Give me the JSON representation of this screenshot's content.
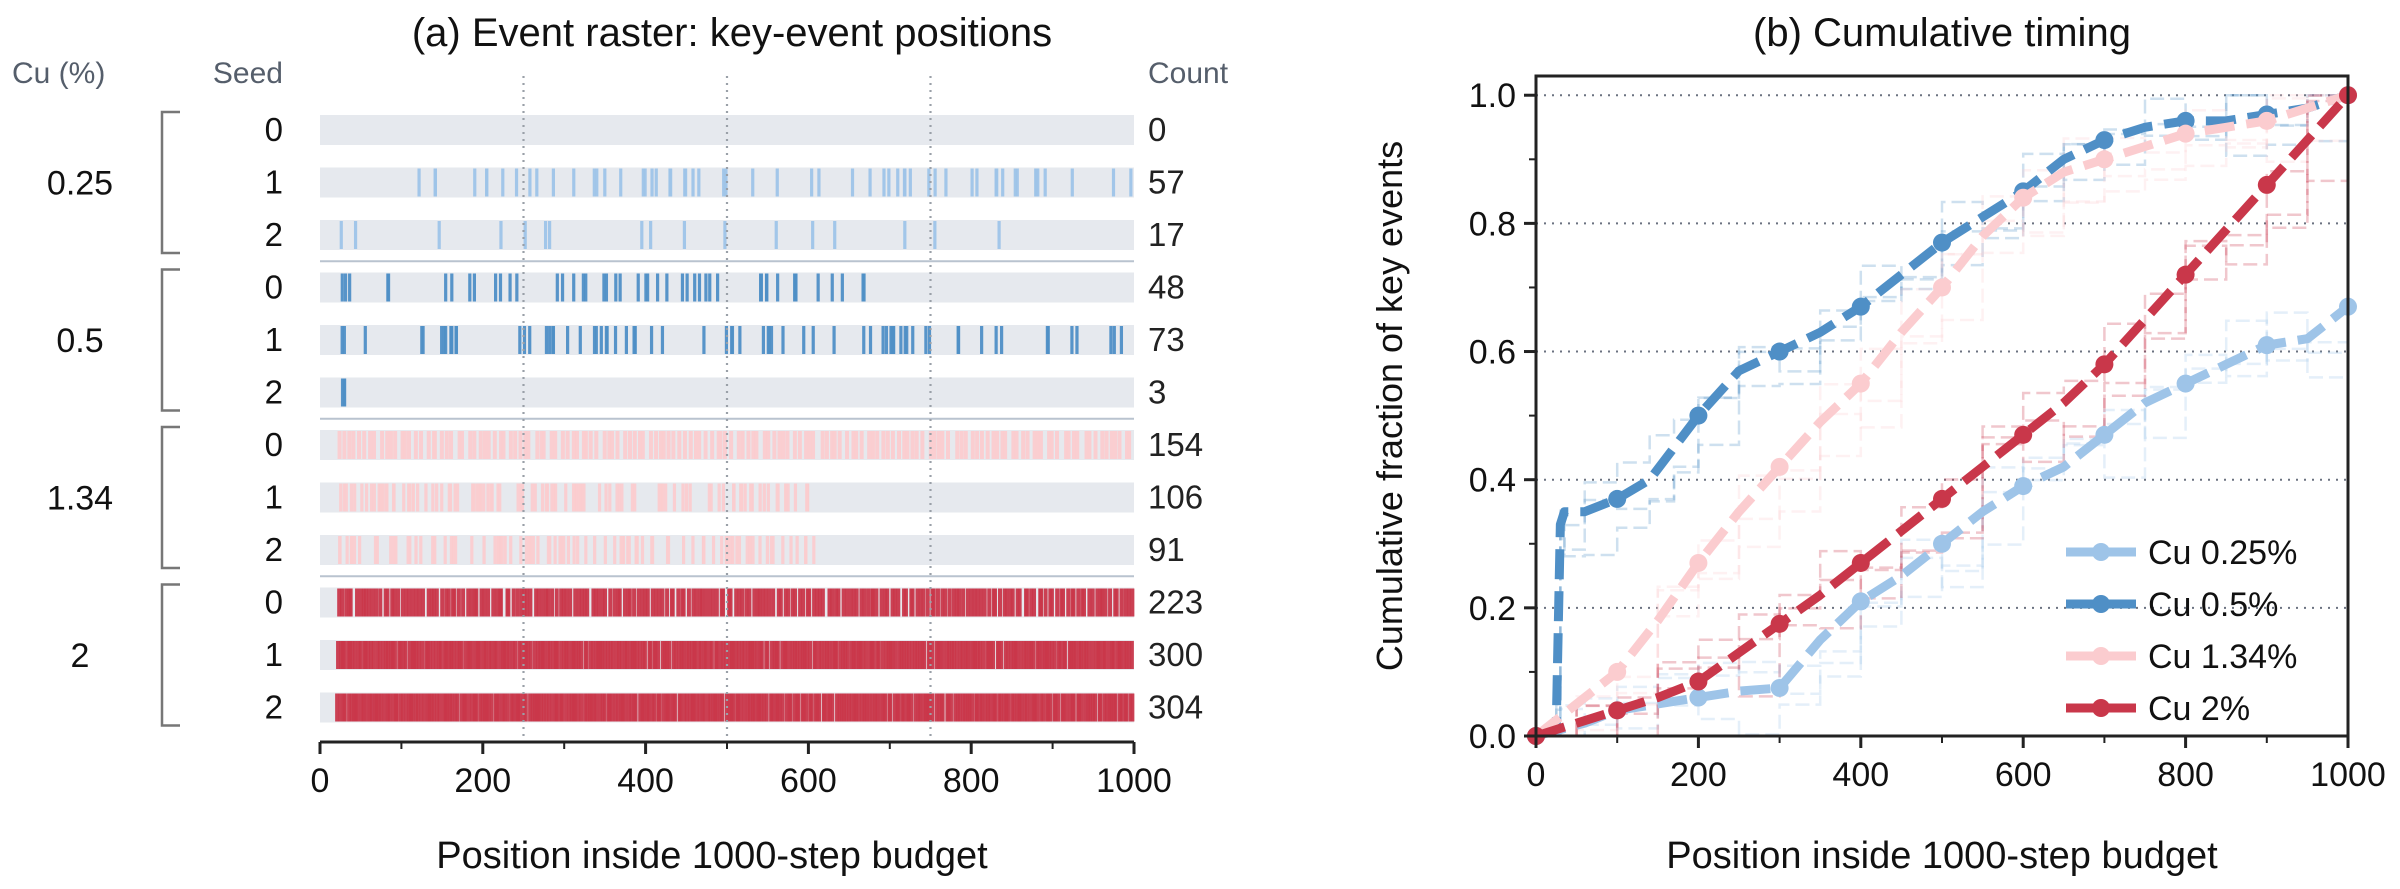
{
  "colors": {
    "cu025": "#9ec4e8",
    "cu05": "#4f8fc6",
    "cu134": "#fbcccf",
    "cu2": "#c9374a",
    "row_bg": "#e6e9ee",
    "axis": "#222222",
    "muted_label": "#555e6b"
  },
  "chart_data": [
    {
      "type": "raster",
      "title": "(a) Event raster: key-event positions",
      "xlabel": "Position inside 1000-step budget",
      "xlim": [
        0,
        1000
      ],
      "xticks": [
        0,
        200,
        400,
        600,
        800,
        1000
      ],
      "vlines": [
        250,
        500,
        750
      ],
      "group_header": "Cu (%)",
      "seed_header": "Seed",
      "count_header": "Count",
      "groups": [
        {
          "label": "0.25",
          "color_key": "cu025",
          "rows": [
            {
              "seed": "0",
              "count": 0,
              "end": 0
            },
            {
              "seed": "1",
              "count": 57,
              "end": 1000
            },
            {
              "seed": "2",
              "count": 17,
              "end": 880
            }
          ]
        },
        {
          "label": "0.5",
          "color_key": "cu05",
          "rows": [
            {
              "seed": "0",
              "count": 48,
              "end": 670
            },
            {
              "seed": "1",
              "count": 73,
              "end": 1000
            },
            {
              "seed": "2",
              "count": 3,
              "end": 40
            }
          ]
        },
        {
          "label": "1.34",
          "color_key": "cu134",
          "rows": [
            {
              "seed": "0",
              "count": 154,
              "end": 1000
            },
            {
              "seed": "1",
              "count": 106,
              "end": 620
            },
            {
              "seed": "2",
              "count": 91,
              "end": 620
            }
          ]
        },
        {
          "label": "2",
          "color_key": "cu2",
          "rows": [
            {
              "seed": "0",
              "count": 223,
              "end": 1000
            },
            {
              "seed": "1",
              "count": 300,
              "end": 1000
            },
            {
              "seed": "2",
              "count": 304,
              "end": 1000
            }
          ]
        }
      ]
    },
    {
      "type": "line",
      "title": "(b) Cumulative timing",
      "xlabel": "Position inside 1000-step budget",
      "ylabel": "Cumulative fraction of key events",
      "xlim": [
        0,
        1000
      ],
      "ylim": [
        0,
        1.03
      ],
      "xticks": [
        0,
        200,
        400,
        600,
        800,
        1000
      ],
      "yticks": [
        0.0,
        0.2,
        0.4,
        0.6,
        0.8,
        1.0
      ],
      "ytick_labels": [
        "0.0",
        "0.2",
        "0.4",
        "0.6",
        "0.8",
        "1.0"
      ],
      "grid": "horizontal dotted",
      "legend_position": "lower-right",
      "series": [
        {
          "name": "Cu 0.25%",
          "color_key": "cu025",
          "x": [
            0,
            30,
            60,
            100,
            150,
            200,
            250,
            300,
            350,
            400,
            450,
            500,
            550,
            600,
            650,
            700,
            750,
            800,
            850,
            900,
            950,
            1000
          ],
          "y": [
            0,
            0.01,
            0.02,
            0.04,
            0.05,
            0.06,
            0.07,
            0.075,
            0.15,
            0.21,
            0.25,
            0.3,
            0.35,
            0.39,
            0.42,
            0.47,
            0.52,
            0.55,
            0.58,
            0.61,
            0.62,
            0.67
          ]
        },
        {
          "name": "Cu 0.5%",
          "color_key": "cu05",
          "x": [
            0,
            25,
            30,
            35,
            60,
            100,
            140,
            170,
            200,
            250,
            300,
            350,
            400,
            450,
            500,
            550,
            600,
            650,
            700,
            750,
            800,
            850,
            900,
            950,
            1000
          ],
          "y": [
            0,
            0.02,
            0.33,
            0.35,
            0.35,
            0.37,
            0.4,
            0.45,
            0.5,
            0.57,
            0.6,
            0.63,
            0.67,
            0.72,
            0.77,
            0.81,
            0.85,
            0.9,
            0.93,
            0.95,
            0.96,
            0.96,
            0.97,
            0.98,
            1.0
          ]
        },
        {
          "name": "Cu 1.34%",
          "color_key": "cu134",
          "x": [
            0,
            50,
            100,
            150,
            200,
            250,
            300,
            350,
            400,
            450,
            500,
            550,
            600,
            650,
            700,
            750,
            800,
            850,
            900,
            950,
            1000
          ],
          "y": [
            0,
            0.05,
            0.1,
            0.18,
            0.27,
            0.35,
            0.42,
            0.49,
            0.55,
            0.63,
            0.7,
            0.78,
            0.84,
            0.88,
            0.9,
            0.92,
            0.94,
            0.95,
            0.96,
            0.98,
            1.0
          ]
        },
        {
          "name": "Cu 2%",
          "color_key": "cu2",
          "x": [
            0,
            50,
            100,
            150,
            200,
            250,
            300,
            350,
            400,
            450,
            500,
            550,
            600,
            650,
            700,
            750,
            800,
            850,
            900,
            950,
            1000
          ],
          "y": [
            0,
            0.02,
            0.04,
            0.06,
            0.085,
            0.13,
            0.175,
            0.22,
            0.27,
            0.32,
            0.37,
            0.42,
            0.47,
            0.52,
            0.58,
            0.65,
            0.72,
            0.79,
            0.86,
            0.93,
            1.0
          ]
        }
      ]
    }
  ]
}
